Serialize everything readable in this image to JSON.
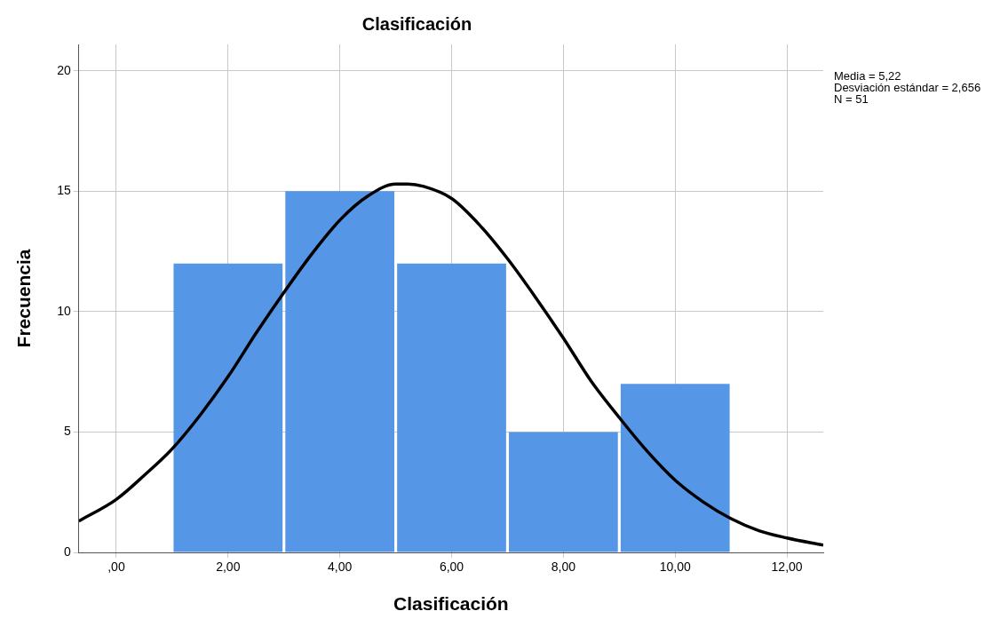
{
  "chart_data": {
    "type": "histogram",
    "title": "Clasificación",
    "xlabel": "Clasificación",
    "ylabel": "Frecuencia",
    "bins": [
      1,
      3,
      5,
      7,
      9,
      11
    ],
    "values": [
      12,
      15,
      12,
      5,
      7
    ],
    "color": "#5596e6",
    "series": [
      {
        "type": "line",
        "color": "#000000",
        "x": [
          -0.67,
          0,
          0.5,
          1,
          1.5,
          2,
          2.5,
          3,
          3.5,
          4,
          4.5,
          5,
          5.22,
          5.5,
          6,
          6.5,
          7,
          7.5,
          8,
          8.5,
          9,
          9.5,
          10,
          10.5,
          11,
          11.5,
          12,
          12.65
        ],
        "values": [
          1.3,
          2.2,
          3.2,
          4.3,
          5.7,
          7.3,
          9.1,
          10.8,
          12.4,
          13.8,
          14.8,
          15.3,
          15.3,
          15.2,
          14.7,
          13.6,
          12.2,
          10.6,
          8.9,
          7.1,
          5.6,
          4.2,
          3.0,
          2.1,
          1.4,
          0.9,
          0.6,
          0.3
        ]
      }
    ],
    "xlim": [
      -0.67,
      12.65
    ],
    "ylim": [
      0,
      21.1
    ],
    "xticks": [
      {
        "value": 0,
        "label": ",00"
      },
      {
        "value": 2,
        "label": "2,00"
      },
      {
        "value": 4,
        "label": "4,00"
      },
      {
        "value": 6,
        "label": "6,00"
      },
      {
        "value": 8,
        "label": "8,00"
      },
      {
        "value": 10,
        "label": "10,00"
      },
      {
        "value": 12,
        "label": "12,00"
      }
    ],
    "yticks": [
      0,
      5,
      10,
      15,
      20
    ],
    "grid": true,
    "legend": false,
    "annotations": [
      "Media = 5,22",
      "Desviación estándar = 2,656",
      "N = 51"
    ]
  }
}
